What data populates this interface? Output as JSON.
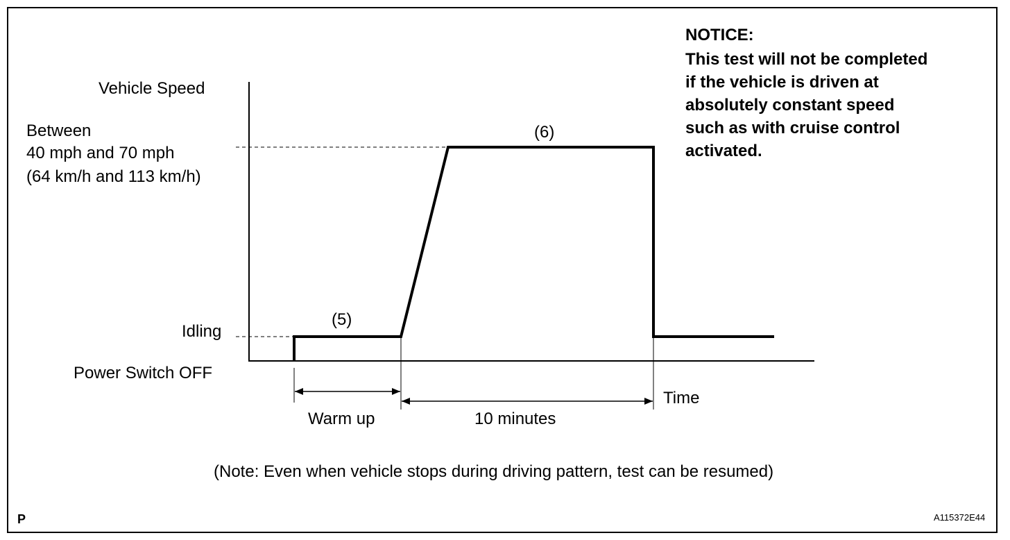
{
  "notice": {
    "title": "NOTICE:",
    "lines": [
      "This test will not be completed",
      "if the vehicle is driven at",
      "absolutely constant speed",
      "such as with cruise control",
      "activated."
    ]
  },
  "axis": {
    "y_label": "Vehicle Speed",
    "x_label": "Time"
  },
  "levels": {
    "speed_range": [
      "Between",
      "40 mph and 70 mph",
      "(64 km/h and 113 km/h)"
    ],
    "idling": "Idling",
    "power_off": "Power Switch OFF"
  },
  "steps": {
    "step5": "(5)",
    "step6": "(6)"
  },
  "durations": {
    "warm_up": "Warm up",
    "ten_minutes": "10 minutes"
  },
  "note": "(Note: Even when vehicle stops during driving pattern, test can be resumed)",
  "footer": {
    "left_mark": "P",
    "figure_id": "A115372E44"
  }
}
